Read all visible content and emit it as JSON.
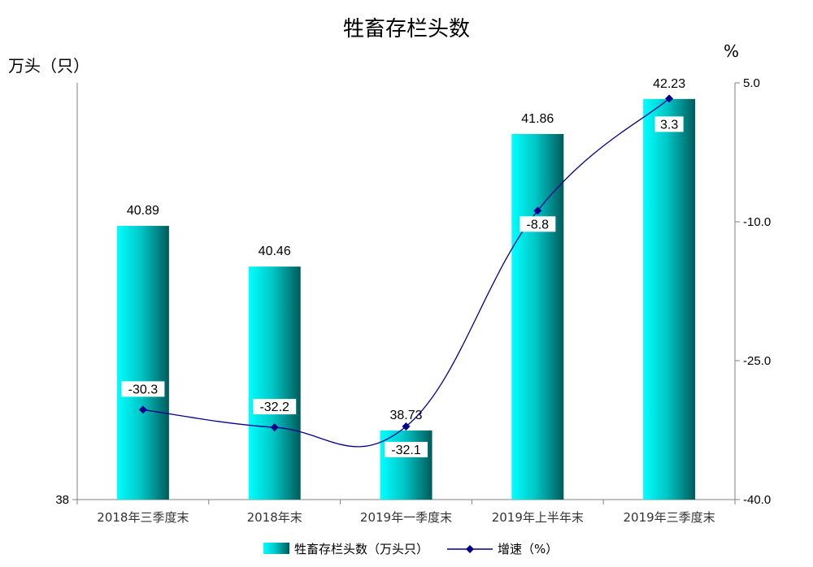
{
  "chart_data": {
    "type": "bar",
    "title": "牲畜存栏头数",
    "ylabel_left": "万头（只）",
    "ylabel_right": "%",
    "categories": [
      "2018年三季度末",
      "2018年末",
      "2019年一季度末",
      "2019年上半年末",
      "2019年三季度末"
    ],
    "series": [
      {
        "name": "牲畜存栏头数（万头只）",
        "type": "bar",
        "axis": "left",
        "values": [
          40.89,
          40.46,
          38.73,
          41.86,
          42.23
        ],
        "color": "#00e5e5"
      },
      {
        "name": "增速（%）",
        "type": "line",
        "axis": "right",
        "values": [
          -30.3,
          -32.2,
          -32.1,
          -8.8,
          3.3
        ],
        "color": "#00008b"
      }
    ],
    "left_axis": {
      "min": 38,
      "max": 42.4,
      "ticks": [
        "38"
      ]
    },
    "right_axis": {
      "min": -40,
      "max": 5,
      "ticks": [
        "5.0",
        "-10.0",
        "-25.0",
        "-40.0"
      ]
    },
    "grid": false,
    "legend_position": "bottom"
  }
}
